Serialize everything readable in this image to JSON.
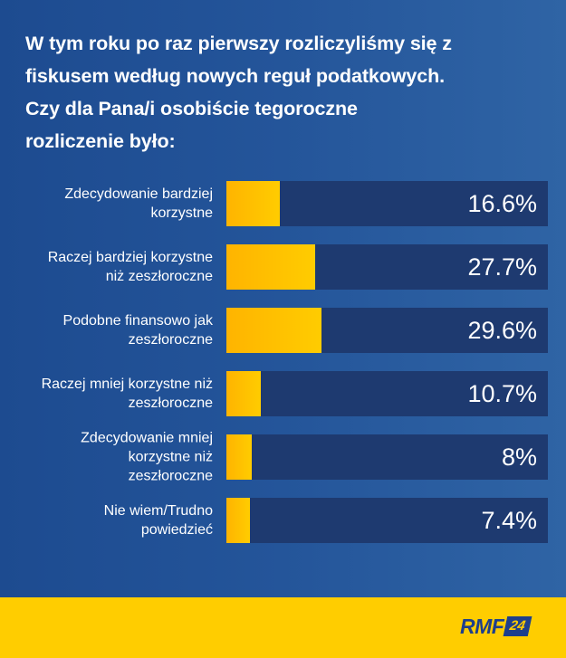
{
  "title": {
    "lines": [
      "W tym roku po raz pierwszy rozliczyliśmy się z",
      "fiskusem według nowych reguł podatkowych.",
      "Czy dla Pana/i osobiście tegoroczne",
      "rozliczenie było:"
    ]
  },
  "rows": [
    {
      "label_lines": [
        "Zdecydowanie bardziej",
        "korzystne"
      ],
      "value": 16.6,
      "value_label": "16.6%"
    },
    {
      "label_lines": [
        "Raczej bardziej korzystne",
        "niż zeszłoroczne"
      ],
      "value": 27.7,
      "value_label": "27.7%"
    },
    {
      "label_lines": [
        "Podobne finansowo jak",
        "zeszłoroczne"
      ],
      "value": 29.6,
      "value_label": "29.6%"
    },
    {
      "label_lines": [
        "Raczej mniej korzystne niż",
        "zeszłoroczne"
      ],
      "value": 10.7,
      "value_label": "10.7%"
    },
    {
      "label_lines": [
        "Zdecydowanie mniej",
        "korzystne niż",
        "zeszłoroczne"
      ],
      "value": 8,
      "value_label": "8%"
    },
    {
      "label_lines": [
        "Nie wiem/Trudno",
        "powiedzieć"
      ],
      "value": 7.4,
      "value_label": "7.4%"
    }
  ],
  "footer": {
    "logo_text": "RMF",
    "logo_badge": "24"
  },
  "colors": {
    "background": "#24559a",
    "track": "#1e3a70",
    "fill_start": "#ffb400",
    "fill_end": "#ffcc00",
    "footer": "#ffcd00",
    "logo": "#1e3f8c"
  },
  "chart_data": {
    "type": "bar",
    "orientation": "horizontal",
    "title": "W tym roku po raz pierwszy rozliczyliśmy się z fiskusem według nowych reguł podatkowych. Czy dla Pana/i osobiście tegoroczne rozliczenie było:",
    "categories": [
      "Zdecydowanie bardziej korzystne",
      "Raczej bardziej korzystne niż zeszłoroczne",
      "Podobne finansowo jak zeszłoroczne",
      "Raczej mniej korzystne niż zeszłoroczne",
      "Zdecydowanie mniej korzystne niż zeszłoroczne",
      "Nie wiem/Trudno powiedzieć"
    ],
    "values": [
      16.6,
      27.7,
      29.6,
      10.7,
      8,
      7.4
    ],
    "value_labels": [
      "16.6%",
      "27.7%",
      "29.6%",
      "10.7%",
      "8%",
      "7.4%"
    ],
    "xlabel": "",
    "ylabel": "",
    "xlim": [
      0,
      100
    ],
    "unit": "%",
    "grid": false,
    "legend": null
  }
}
